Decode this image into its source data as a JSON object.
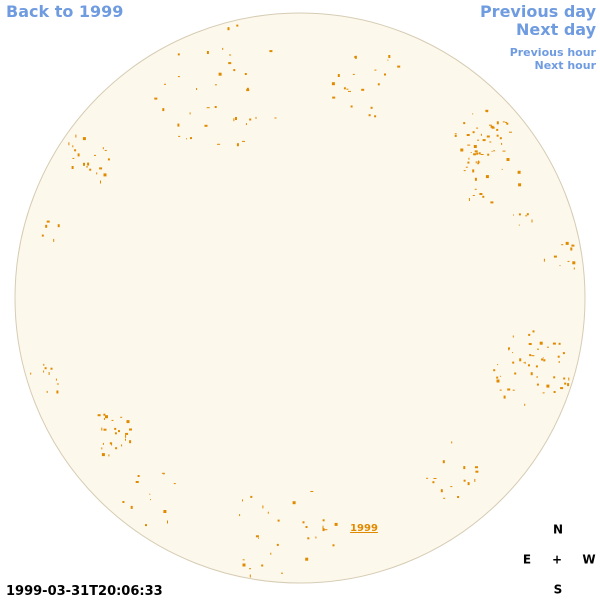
{
  "navigation": {
    "back": "Back to 1999",
    "previous_day": "Previous day",
    "next_day": "Next day",
    "previous_hour": "Previous hour",
    "next_hour": "Next hour"
  },
  "image": {
    "year_label": "1999",
    "timestamp": "1999-03-31T20:06:33"
  },
  "compass": {
    "north": "N",
    "east": "E",
    "center": "+",
    "west": "W",
    "south": "S"
  }
}
